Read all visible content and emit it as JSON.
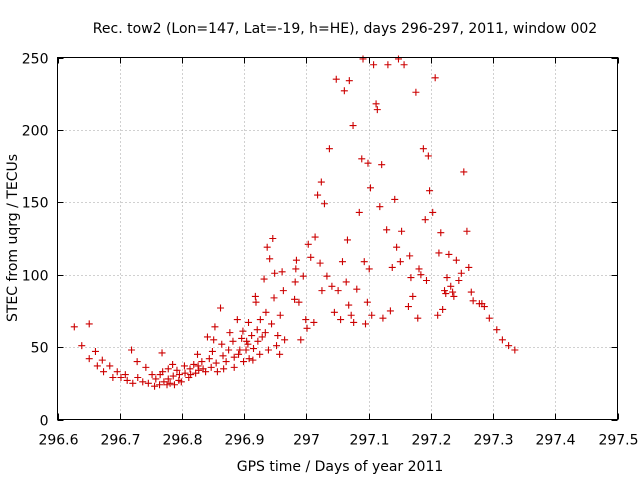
{
  "chart_data": {
    "type": "scatter",
    "title": "Rec. tow2 (Lon=147, Lat=-19, h=HE), days 296-297, 2011, window 002",
    "xlabel": "GPS time / Days of year 2011",
    "ylabel": "STEC from uqrg / TECUs",
    "xlim": [
      296.6,
      297.5
    ],
    "ylim": [
      0,
      250
    ],
    "xticks": [
      296.6,
      296.7,
      296.8,
      296.9,
      297.0,
      297.1,
      297.2,
      297.3,
      297.4,
      297.5
    ],
    "xtick_labels": [
      "296.6",
      "296.7",
      "296.8",
      "296.9",
      "297",
      "297.1",
      "297.2",
      "297.3",
      "297.4",
      "297.5"
    ],
    "yticks": [
      0,
      50,
      100,
      150,
      200,
      250
    ],
    "ytick_labels": [
      "0",
      "50",
      "100",
      "150",
      "200",
      "250"
    ],
    "grid": true,
    "legend": "none",
    "marker": "plus",
    "color": "#cc0000",
    "series": [
      {
        "points": [
          [
            296.627,
            64
          ],
          [
            296.639,
            51
          ],
          [
            296.651,
            66
          ],
          [
            296.651,
            42
          ],
          [
            296.661,
            47
          ],
          [
            296.664,
            37
          ],
          [
            296.672,
            41
          ],
          [
            296.674,
            33
          ],
          [
            296.684,
            37
          ],
          [
            296.689,
            29
          ],
          [
            296.696,
            33
          ],
          [
            296.702,
            29
          ],
          [
            296.709,
            31
          ],
          [
            296.712,
            27
          ],
          [
            296.719,
            48
          ],
          [
            296.721,
            25
          ],
          [
            296.728,
            40
          ],
          [
            296.729,
            29
          ],
          [
            296.737,
            26
          ],
          [
            296.742,
            36
          ],
          [
            296.746,
            25
          ],
          [
            296.752,
            31
          ],
          [
            296.756,
            23
          ],
          [
            296.758,
            28
          ],
          [
            296.764,
            24
          ],
          [
            296.765,
            31
          ],
          [
            296.768,
            46
          ],
          [
            296.769,
            33
          ],
          [
            296.771,
            26
          ],
          [
            296.776,
            24
          ],
          [
            296.778,
            35
          ],
          [
            296.778,
            28
          ],
          [
            296.781,
            25
          ],
          [
            296.785,
            38
          ],
          [
            296.786,
            30
          ],
          [
            296.788,
            24
          ],
          [
            296.792,
            34
          ],
          [
            296.795,
            27
          ],
          [
            296.796,
            31
          ],
          [
            296.799,
            26
          ],
          [
            296.804,
            37
          ],
          [
            296.805,
            32
          ],
          [
            296.811,
            29
          ],
          [
            296.813,
            35
          ],
          [
            296.814,
            31
          ],
          [
            296.819,
            38
          ],
          [
            296.822,
            32
          ],
          [
            296.825,
            45
          ],
          [
            296.826,
            37
          ],
          [
            296.827,
            34
          ],
          [
            296.832,
            40
          ],
          [
            296.834,
            35
          ],
          [
            296.838,
            33
          ],
          [
            296.841,
            57
          ],
          [
            296.844,
            42
          ],
          [
            296.847,
            36
          ],
          [
            296.849,
            47
          ],
          [
            296.851,
            55
          ],
          [
            296.853,
            64
          ],
          [
            296.855,
            39
          ],
          [
            296.857,
            33
          ],
          [
            296.862,
            77
          ],
          [
            296.864,
            52
          ],
          [
            296.866,
            44
          ],
          [
            296.867,
            35
          ],
          [
            296.871,
            40
          ],
          [
            296.875,
            48
          ],
          [
            296.877,
            60
          ],
          [
            296.882,
            54
          ],
          [
            296.884,
            43
          ],
          [
            296.884,
            36
          ],
          [
            296.889,
            69
          ],
          [
            296.891,
            45
          ],
          [
            296.893,
            48
          ],
          [
            296.896,
            56
          ],
          [
            296.898,
            61
          ],
          [
            296.899,
            40
          ],
          [
            296.903,
            48
          ],
          [
            296.904,
            54
          ],
          [
            296.906,
            52
          ],
          [
            296.907,
            67
          ],
          [
            296.908,
            42
          ],
          [
            296.912,
            58
          ],
          [
            296.914,
            41
          ],
          [
            296.915,
            49
          ],
          [
            296.918,
            85
          ],
          [
            296.919,
            81
          ],
          [
            296.921,
            62
          ],
          [
            296.922,
            54
          ],
          [
            296.925,
            45
          ],
          [
            296.926,
            69
          ],
          [
            296.929,
            57
          ],
          [
            296.932,
            97
          ],
          [
            296.934,
            60
          ],
          [
            296.935,
            74
          ],
          [
            296.937,
            119
          ],
          [
            296.939,
            48
          ],
          [
            296.941,
            111
          ],
          [
            296.944,
            66
          ],
          [
            296.946,
            125
          ],
          [
            296.948,
            84
          ],
          [
            296.949,
            101
          ],
          [
            296.952,
            51
          ],
          [
            296.954,
            58
          ],
          [
            296.957,
            45
          ],
          [
            296.958,
            72
          ],
          [
            296.961,
            102
          ],
          [
            296.963,
            89
          ],
          [
            296.965,
            55
          ],
          [
            296.981,
            83
          ],
          [
            296.982,
            95
          ],
          [
            296.983,
            104
          ],
          [
            296.984,
            110
          ],
          [
            296.988,
            81
          ],
          [
            296.991,
            55
          ],
          [
            296.995,
            99
          ],
          [
            296.999,
            69
          ],
          [
            297.001,
            63
          ],
          [
            297.003,
            121
          ],
          [
            297.007,
            112
          ],
          [
            297.012,
            67
          ],
          [
            297.014,
            126
          ],
          [
            297.018,
            155
          ],
          [
            297.022,
            108
          ],
          [
            297.024,
            164
          ],
          [
            297.025,
            89
          ],
          [
            297.029,
            149
          ],
          [
            297.033,
            99
          ],
          [
            297.037,
            187
          ],
          [
            297.041,
            92
          ],
          [
            297.045,
            74
          ],
          [
            297.048,
            235
          ],
          [
            297.051,
            89
          ],
          [
            297.055,
            69
          ],
          [
            297.058,
            109
          ],
          [
            297.061,
            227
          ],
          [
            297.064,
            95
          ],
          [
            297.066,
            124
          ],
          [
            297.068,
            79
          ],
          [
            297.069,
            234
          ],
          [
            297.072,
            72
          ],
          [
            297.075,
            203
          ],
          [
            297.076,
            67
          ],
          [
            297.081,
            90
          ],
          [
            297.085,
            143
          ],
          [
            297.089,
            180
          ],
          [
            297.091,
            249
          ],
          [
            297.093,
            109
          ],
          [
            297.095,
            66
          ],
          [
            297.098,
            81
          ],
          [
            297.099,
            177
          ],
          [
            297.101,
            104
          ],
          [
            297.103,
            160
          ],
          [
            297.105,
            72
          ],
          [
            297.108,
            245
          ],
          [
            297.112,
            218
          ],
          [
            297.114,
            214
          ],
          [
            297.118,
            147
          ],
          [
            297.121,
            176
          ],
          [
            297.123,
            70
          ],
          [
            297.129,
            131
          ],
          [
            297.131,
            245
          ],
          [
            297.135,
            75
          ],
          [
            297.138,
            105
          ],
          [
            297.142,
            152
          ],
          [
            297.145,
            119
          ],
          [
            297.148,
            249
          ],
          [
            297.151,
            109
          ],
          [
            297.153,
            130
          ],
          [
            297.157,
            245
          ],
          [
            297.164,
            78
          ],
          [
            297.166,
            113
          ],
          [
            297.168,
            98
          ],
          [
            297.171,
            85
          ],
          [
            297.176,
            226
          ],
          [
            297.179,
            70
          ],
          [
            297.181,
            104
          ],
          [
            297.184,
            100
          ],
          [
            297.188,
            187
          ],
          [
            297.191,
            138
          ],
          [
            297.193,
            96
          ],
          [
            297.196,
            182
          ],
          [
            297.198,
            158
          ],
          [
            297.203,
            143
          ],
          [
            297.207,
            236
          ],
          [
            297.211,
            72
          ],
          [
            297.213,
            115
          ],
          [
            297.216,
            129
          ],
          [
            297.219,
            76
          ],
          [
            297.222,
            89
          ],
          [
            297.224,
            87
          ],
          [
            297.226,
            98
          ],
          [
            297.229,
            114
          ],
          [
            297.232,
            92
          ],
          [
            297.235,
            88
          ],
          [
            297.237,
            85
          ],
          [
            297.241,
            110
          ],
          [
            297.245,
            96
          ],
          [
            297.249,
            101
          ],
          [
            297.253,
            171
          ],
          [
            297.258,
            130
          ],
          [
            297.261,
            105
          ],
          [
            297.265,
            88
          ],
          [
            297.268,
            82
          ],
          [
            297.278,
            80
          ],
          [
            297.282,
            80
          ],
          [
            297.286,
            78
          ],
          [
            297.294,
            70
          ],
          [
            297.306,
            62
          ],
          [
            297.315,
            55
          ],
          [
            297.325,
            51
          ],
          [
            297.335,
            48
          ]
        ]
      }
    ]
  }
}
